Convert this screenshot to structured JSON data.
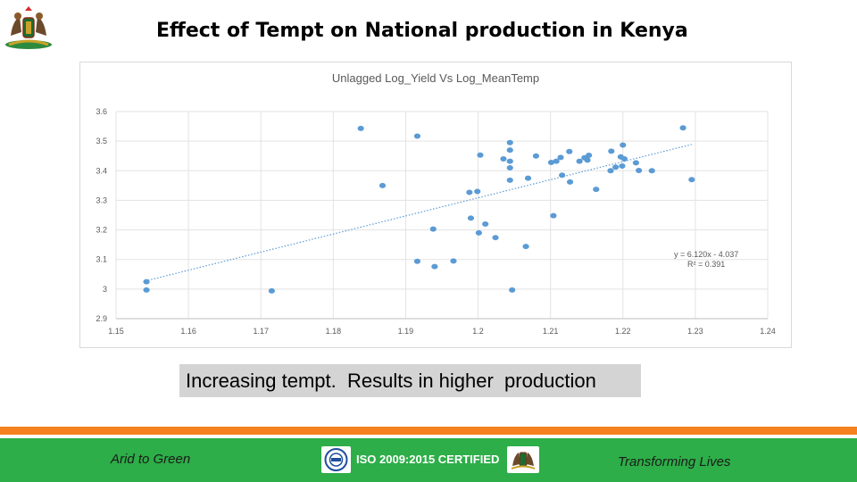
{
  "header": {
    "title": "Effect of Tempt on National production in Kenya"
  },
  "caption": "Increasing tempt.  Results in higher  production",
  "footer": {
    "left_text": "Arid to Green",
    "center_text": "ISO 2009:2015 CERTIFIED",
    "right_text": "Transforming Lives"
  },
  "colors": {
    "orange_stripe": "#f5821f",
    "footer_green": "#2dae48",
    "point_color": "#5b9bd5"
  },
  "icons": {
    "coat_of_arms": "coat-of-arms-icon",
    "iso_logo": "iso-logo-icon",
    "county_crest": "county-crest-icon"
  },
  "chart_data": {
    "type": "scatter",
    "title": "Unlagged Log_Yield Vs Log_MeanTemp",
    "xlabel": "",
    "ylabel": "",
    "xlim": [
      1.15,
      1.24
    ],
    "ylim": [
      2.9,
      3.6
    ],
    "x_ticks": [
      "1.15",
      "1.16",
      "1.17",
      "1.18",
      "1.19",
      "1.2",
      "1.21",
      "1.22",
      "1.23",
      "1.24"
    ],
    "y_ticks": [
      "2.9",
      "3",
      "3.1",
      "3.2",
      "3.3",
      "3.4",
      "3.5",
      "3.6"
    ],
    "grid": true,
    "trendline": {
      "type": "linear",
      "style": "dotted",
      "x": [
        1.154,
        1.2295
      ],
      "y": [
        3.027,
        3.489
      ],
      "equation": "y = 6.120x - 4.037",
      "r2": "R² = 0.391"
    },
    "series": [
      {
        "name": "Log_Yield",
        "points": [
          [
            1.1542,
            3.025
          ],
          [
            1.1542,
            2.997
          ],
          [
            1.1715,
            2.994
          ],
          [
            1.1838,
            3.543
          ],
          [
            1.1868,
            3.35
          ],
          [
            1.1916,
            3.517
          ],
          [
            1.1916,
            3.094
          ],
          [
            1.1938,
            3.203
          ],
          [
            1.194,
            3.076
          ],
          [
            1.1966,
            3.095
          ],
          [
            1.1988,
            3.327
          ],
          [
            1.199,
            3.24
          ],
          [
            1.1999,
            3.33
          ],
          [
            1.2001,
            3.19
          ],
          [
            1.2003,
            3.453
          ],
          [
            1.201,
            3.22
          ],
          [
            1.2024,
            3.174
          ],
          [
            1.2035,
            3.44
          ],
          [
            1.2044,
            3.495
          ],
          [
            1.2044,
            3.47
          ],
          [
            1.2044,
            3.432
          ],
          [
            1.2044,
            3.41
          ],
          [
            1.2044,
            3.368
          ],
          [
            1.2047,
            2.997
          ],
          [
            1.2066,
            3.144
          ],
          [
            1.2069,
            3.375
          ],
          [
            1.208,
            3.45
          ],
          [
            1.2101,
            3.428
          ],
          [
            1.2104,
            3.248
          ],
          [
            1.2108,
            3.432
          ],
          [
            1.2114,
            3.445
          ],
          [
            1.2116,
            3.385
          ],
          [
            1.2126,
            3.465
          ],
          [
            1.2127,
            3.362
          ],
          [
            1.214,
            3.432
          ],
          [
            1.2147,
            3.444
          ],
          [
            1.2151,
            3.436
          ],
          [
            1.2153,
            3.452
          ],
          [
            1.2163,
            3.337
          ],
          [
            1.2183,
            3.4
          ],
          [
            1.2184,
            3.466
          ],
          [
            1.219,
            3.412
          ],
          [
            1.2197,
            3.447
          ],
          [
            1.2199,
            3.416
          ],
          [
            1.22,
            3.487
          ],
          [
            1.2202,
            3.44
          ],
          [
            1.2218,
            3.427
          ],
          [
            1.2222,
            3.401
          ],
          [
            1.224,
            3.4
          ],
          [
            1.2283,
            3.545
          ],
          [
            1.2295,
            3.37
          ]
        ]
      }
    ]
  }
}
